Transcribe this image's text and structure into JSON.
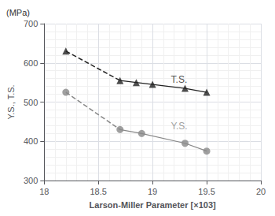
{
  "chart_data": {
    "type": "scatter",
    "xlabel": "Larson-Miller Parameter [×103]",
    "ylabel": "Y.S., T.S.",
    "xlim": [
      18,
      20
    ],
    "ylim": [
      300,
      700
    ],
    "xticks": [
      18,
      18.5,
      19,
      19.5,
      20
    ],
    "yticks": [
      300,
      400,
      500,
      600,
      700
    ],
    "grid": true,
    "series": [
      {
        "type": "line",
        "line_style": "dashed",
        "color": "#222222",
        "x": [
          18.2,
          18.7
        ],
        "values": [
          630,
          555
        ]
      },
      {
        "type": "line",
        "line_style": "dashed",
        "color": "#888888",
        "x": [
          18.2,
          18.7
        ],
        "values": [
          525,
          430
        ]
      },
      {
        "type": "line",
        "line_style": "solid",
        "color": "#222222",
        "x": [
          18.7,
          18.85,
          19.0,
          19.3,
          19.5
        ],
        "values": [
          555,
          550,
          545,
          535,
          525
        ]
      },
      {
        "type": "line",
        "line_style": "solid",
        "color": "#888888",
        "x": [
          18.7,
          18.9,
          19.3,
          19.5
        ],
        "values": [
          430,
          420,
          395,
          375
        ]
      },
      {
        "type": "scatter",
        "marker": "triangle",
        "color": "#222222",
        "x": [
          18.2,
          18.7,
          18.85,
          19.0,
          19.3,
          19.5
        ],
        "values": [
          630,
          555,
          550,
          545,
          535,
          525
        ]
      },
      {
        "type": "scatter",
        "marker": "circle",
        "color": "#888888",
        "x": [
          18.2,
          18.7,
          18.9,
          19.3,
          19.5
        ],
        "values": [
          525,
          430,
          420,
          395,
          375
        ]
      }
    ],
    "annotations": [
      {
        "text": "T.S.",
        "x": 19.17,
        "y": 558,
        "color": "#222222"
      },
      {
        "text": "Y.S.",
        "x": 19.17,
        "y": 438,
        "color": "#888888"
      },
      {
        "text": "(MPa)"
      }
    ]
  }
}
